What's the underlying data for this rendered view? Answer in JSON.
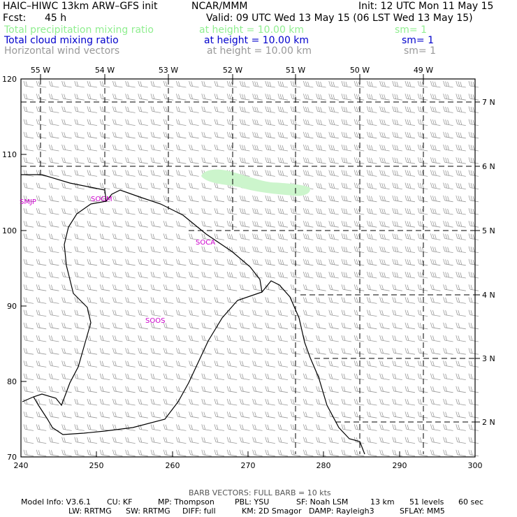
{
  "header": {
    "title_left": "HAIC–HIWC 13km ARW–GFS init",
    "org": "NCAR/MMM",
    "init": "Init: 12 UTC Mon 11 May 15",
    "fcst_label": "Fcst:",
    "fcst_value": "45 h",
    "valid": "Valid: 09 UTC Wed 13 May 15 (06 LST Wed 13 May 15)"
  },
  "fields": [
    {
      "name": "Total precipitation mixing ratio",
      "height": "at height = 10.00 km",
      "sm": "sm= 1",
      "color": "#90ee90"
    },
    {
      "name": "Total cloud mixing ratio",
      "height": "at height = 10.00 km",
      "sm": "sm= 1",
      "color": "#0000cc"
    },
    {
      "name": "Horizontal wind vectors",
      "height": "at height = 10.00 km",
      "sm": "sm= 1",
      "color": "#999999"
    }
  ],
  "map": {
    "x_ticks": [
      "240",
      "250",
      "260",
      "270",
      "280",
      "290",
      "300"
    ],
    "y_ticks": [
      "120",
      "110",
      "100",
      "90",
      "80",
      "70"
    ],
    "lon_labels": [
      "55 W",
      "54 W",
      "53 W",
      "52 W",
      "51 W",
      "50 W",
      "49 W"
    ],
    "lat_labels": [
      "7 N",
      "6 N",
      "5 N",
      "4 N",
      "3 N",
      "2 N"
    ],
    "stations": [
      "SMJP",
      "SOGM",
      "SOCA",
      "SOOS"
    ],
    "x_range": [
      240,
      300
    ],
    "y_range": [
      70,
      120
    ],
    "barb_color": "#999999",
    "coast_color": "#000000",
    "precip_color": "#ccf5cc"
  },
  "footer": {
    "barb_note": "BARB VECTORS:  FULL BARB = 10 kts",
    "line1": [
      "Model Info: V3.6.1",
      "CU: KF",
      "MP: Thompson",
      "PBL: YSU",
      "SF: Noah LSM",
      "13 km",
      "51 levels",
      "60 sec"
    ],
    "line2": [
      "LW: RRTMG",
      "SW: RRTMG",
      "DIFF: full",
      "KM: 2D Smagor",
      "DAMP: Rayleigh3",
      "SFLAY: MM5"
    ]
  }
}
